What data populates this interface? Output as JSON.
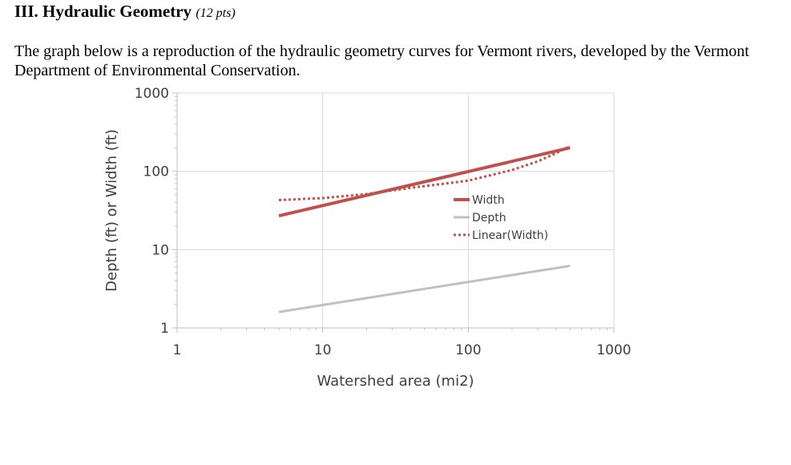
{
  "heading": {
    "title": "III. Hydraulic Geometry",
    "points": "(12 pts)"
  },
  "paragraph": "The graph below is a reproduction of the hydraulic geometry curves for Vermont rivers, developed by the Vermont Department of Environmental Conservation.",
  "chart_data": {
    "type": "line",
    "title": "",
    "xlabel": "Watershed area (mi2)",
    "ylabel": "Depth (ft) or Width (ft)",
    "x_scale": "log",
    "y_scale": "log",
    "xlim": [
      1,
      1000
    ],
    "ylim": [
      1,
      1000
    ],
    "x_ticks": [
      1,
      10,
      100,
      1000
    ],
    "x_tick_labels": [
      "1",
      "10",
      "100",
      "1000"
    ],
    "y_ticks": [
      1,
      10,
      100,
      1000
    ],
    "y_tick_labels": [
      "1",
      "10",
      "100",
      "1000"
    ],
    "grid": "vertical and horizontal major gridlines",
    "legend_position": "center-right",
    "series": [
      {
        "name": "Width",
        "style": "solid",
        "color": "#c0504d",
        "points": [
          [
            5,
            27
          ],
          [
            500,
            200
          ]
        ]
      },
      {
        "name": "Depth",
        "style": "solid",
        "color": "#c0c0c0",
        "points": [
          [
            5,
            1.6
          ],
          [
            500,
            6.2
          ]
        ]
      },
      {
        "name": "Linear(Width)",
        "style": "dotted",
        "color": "#c0504d",
        "points": [
          [
            5,
            43
          ],
          [
            10,
            45.5
          ],
          [
            20,
            51.3
          ],
          [
            40,
            61.3
          ],
          [
            70,
            70
          ],
          [
            100,
            76
          ],
          [
            200,
            104
          ],
          [
            300,
            134
          ],
          [
            400,
            170
          ],
          [
            500,
            210
          ]
        ]
      }
    ]
  }
}
